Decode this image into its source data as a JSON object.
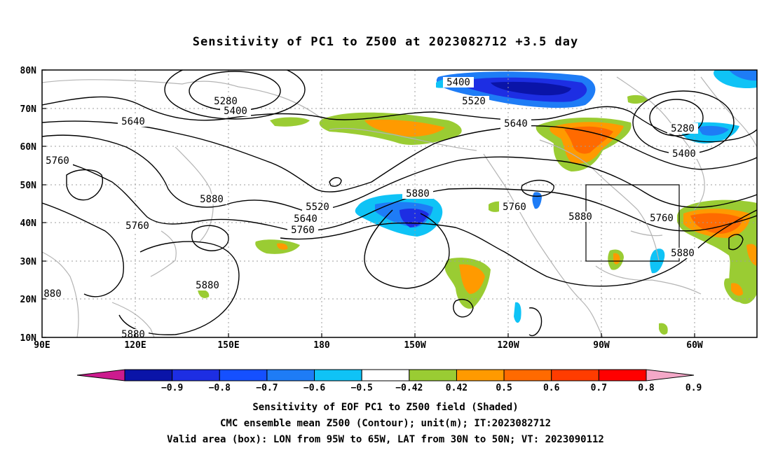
{
  "title": "Sensitivity of PC1 to Z500 at 2023082712 +3.5 day",
  "lat_ticks": [
    "80N",
    "70N",
    "60N",
    "50N",
    "40N",
    "30N",
    "20N",
    "10N"
  ],
  "lon_ticks": [
    "90E",
    "120E",
    "150E",
    "180",
    "150W",
    "120W",
    "90W",
    "60W"
  ],
  "colorbar": {
    "labels": [
      "−0.9",
      "−0.8",
      "−0.7",
      "−0.6",
      "−0.5",
      "−0.42",
      "0.42",
      "0.5",
      "0.6",
      "0.7",
      "0.8",
      "0.9"
    ],
    "colors": [
      "#cc1b8e",
      "#0a14a8",
      "#1d2ee3",
      "#1550ff",
      "#1e7cf6",
      "#0fc3f6",
      "#ffffff",
      "#9acc33",
      "#ff9a00",
      "#ff6a00",
      "#ff3c00",
      "#ff0000",
      "#f4a8c8"
    ]
  },
  "contour_labels": [
    {
      "text": "5280",
      "id": "c5280-a"
    },
    {
      "text": "5400",
      "id": "c5400-a"
    },
    {
      "text": "5400",
      "id": "c5400-b"
    },
    {
      "text": "5520",
      "id": "c5520-a"
    },
    {
      "text": "5640",
      "id": "c5640-a"
    },
    {
      "text": "5640",
      "id": "c5640-b"
    },
    {
      "text": "5760",
      "id": "c5760-a"
    },
    {
      "text": "5880",
      "id": "c5880-a"
    },
    {
      "text": "5520",
      "id": "c5520-b"
    },
    {
      "text": "5640",
      "id": "c5640-c"
    },
    {
      "text": "5760",
      "id": "c5760-b"
    },
    {
      "text": "5760",
      "id": "c5760-c"
    },
    {
      "text": "5880",
      "id": "c5880-b"
    },
    {
      "text": "5760",
      "id": "c5760-d"
    },
    {
      "text": "5880",
      "id": "c5880-c"
    },
    {
      "text": "5880",
      "id": "c5880-d"
    },
    {
      "text": "5280",
      "id": "c5280-b"
    },
    {
      "text": "5400",
      "id": "c5400-c"
    },
    {
      "text": "5760",
      "id": "c5760-e"
    },
    {
      "text": "5880",
      "id": "c5880-e"
    },
    {
      "text": "5880",
      "id": "c5880-f"
    },
    {
      "text": "880",
      "id": "c5880-g"
    }
  ],
  "footer": {
    "line1": "Sensitivity of EOF PC1 to Z500 field (Shaded)",
    "line2": "CMC ensemble mean Z500 (Contour); unit(m); IT:2023082712",
    "line3": "Valid area (box): LON from 95W to 65W, LAT from 30N to 50N; VT: 2023090112"
  }
}
